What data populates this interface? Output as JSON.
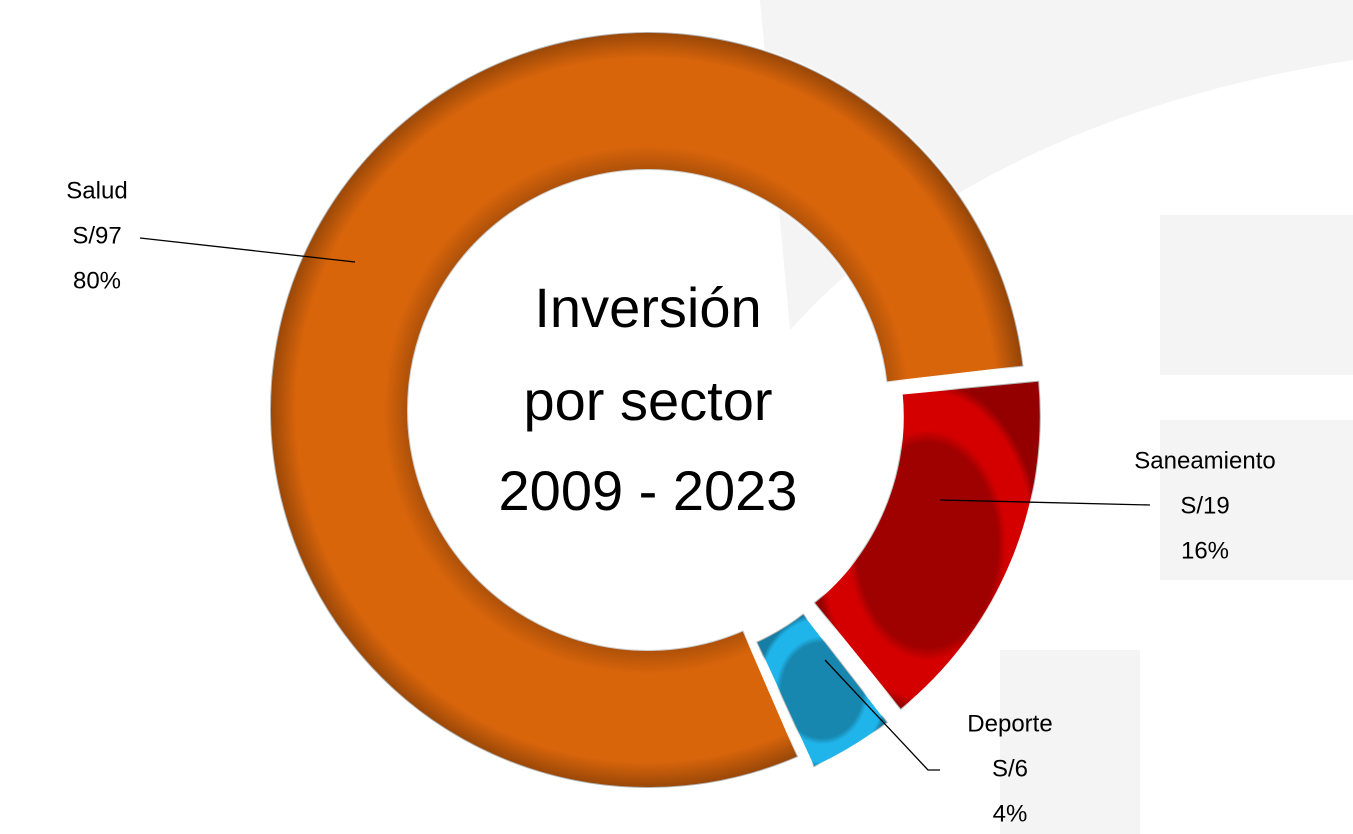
{
  "chart_data": {
    "type": "donut",
    "title_lines": [
      "Inversión",
      "por sector",
      "2009 - 2023"
    ],
    "categories": [
      "Saneamiento",
      "Deporte",
      "Salud"
    ],
    "values": [
      16,
      4,
      80
    ],
    "value_labels": [
      "16%",
      "4%",
      "80%"
    ],
    "amount_labels": [
      "S/19",
      "S/6",
      "S/97"
    ],
    "colors": [
      "#d40000",
      "#1fb4ea",
      "#d9650b"
    ],
    "exploded": [
      true,
      true,
      false
    ]
  }
}
